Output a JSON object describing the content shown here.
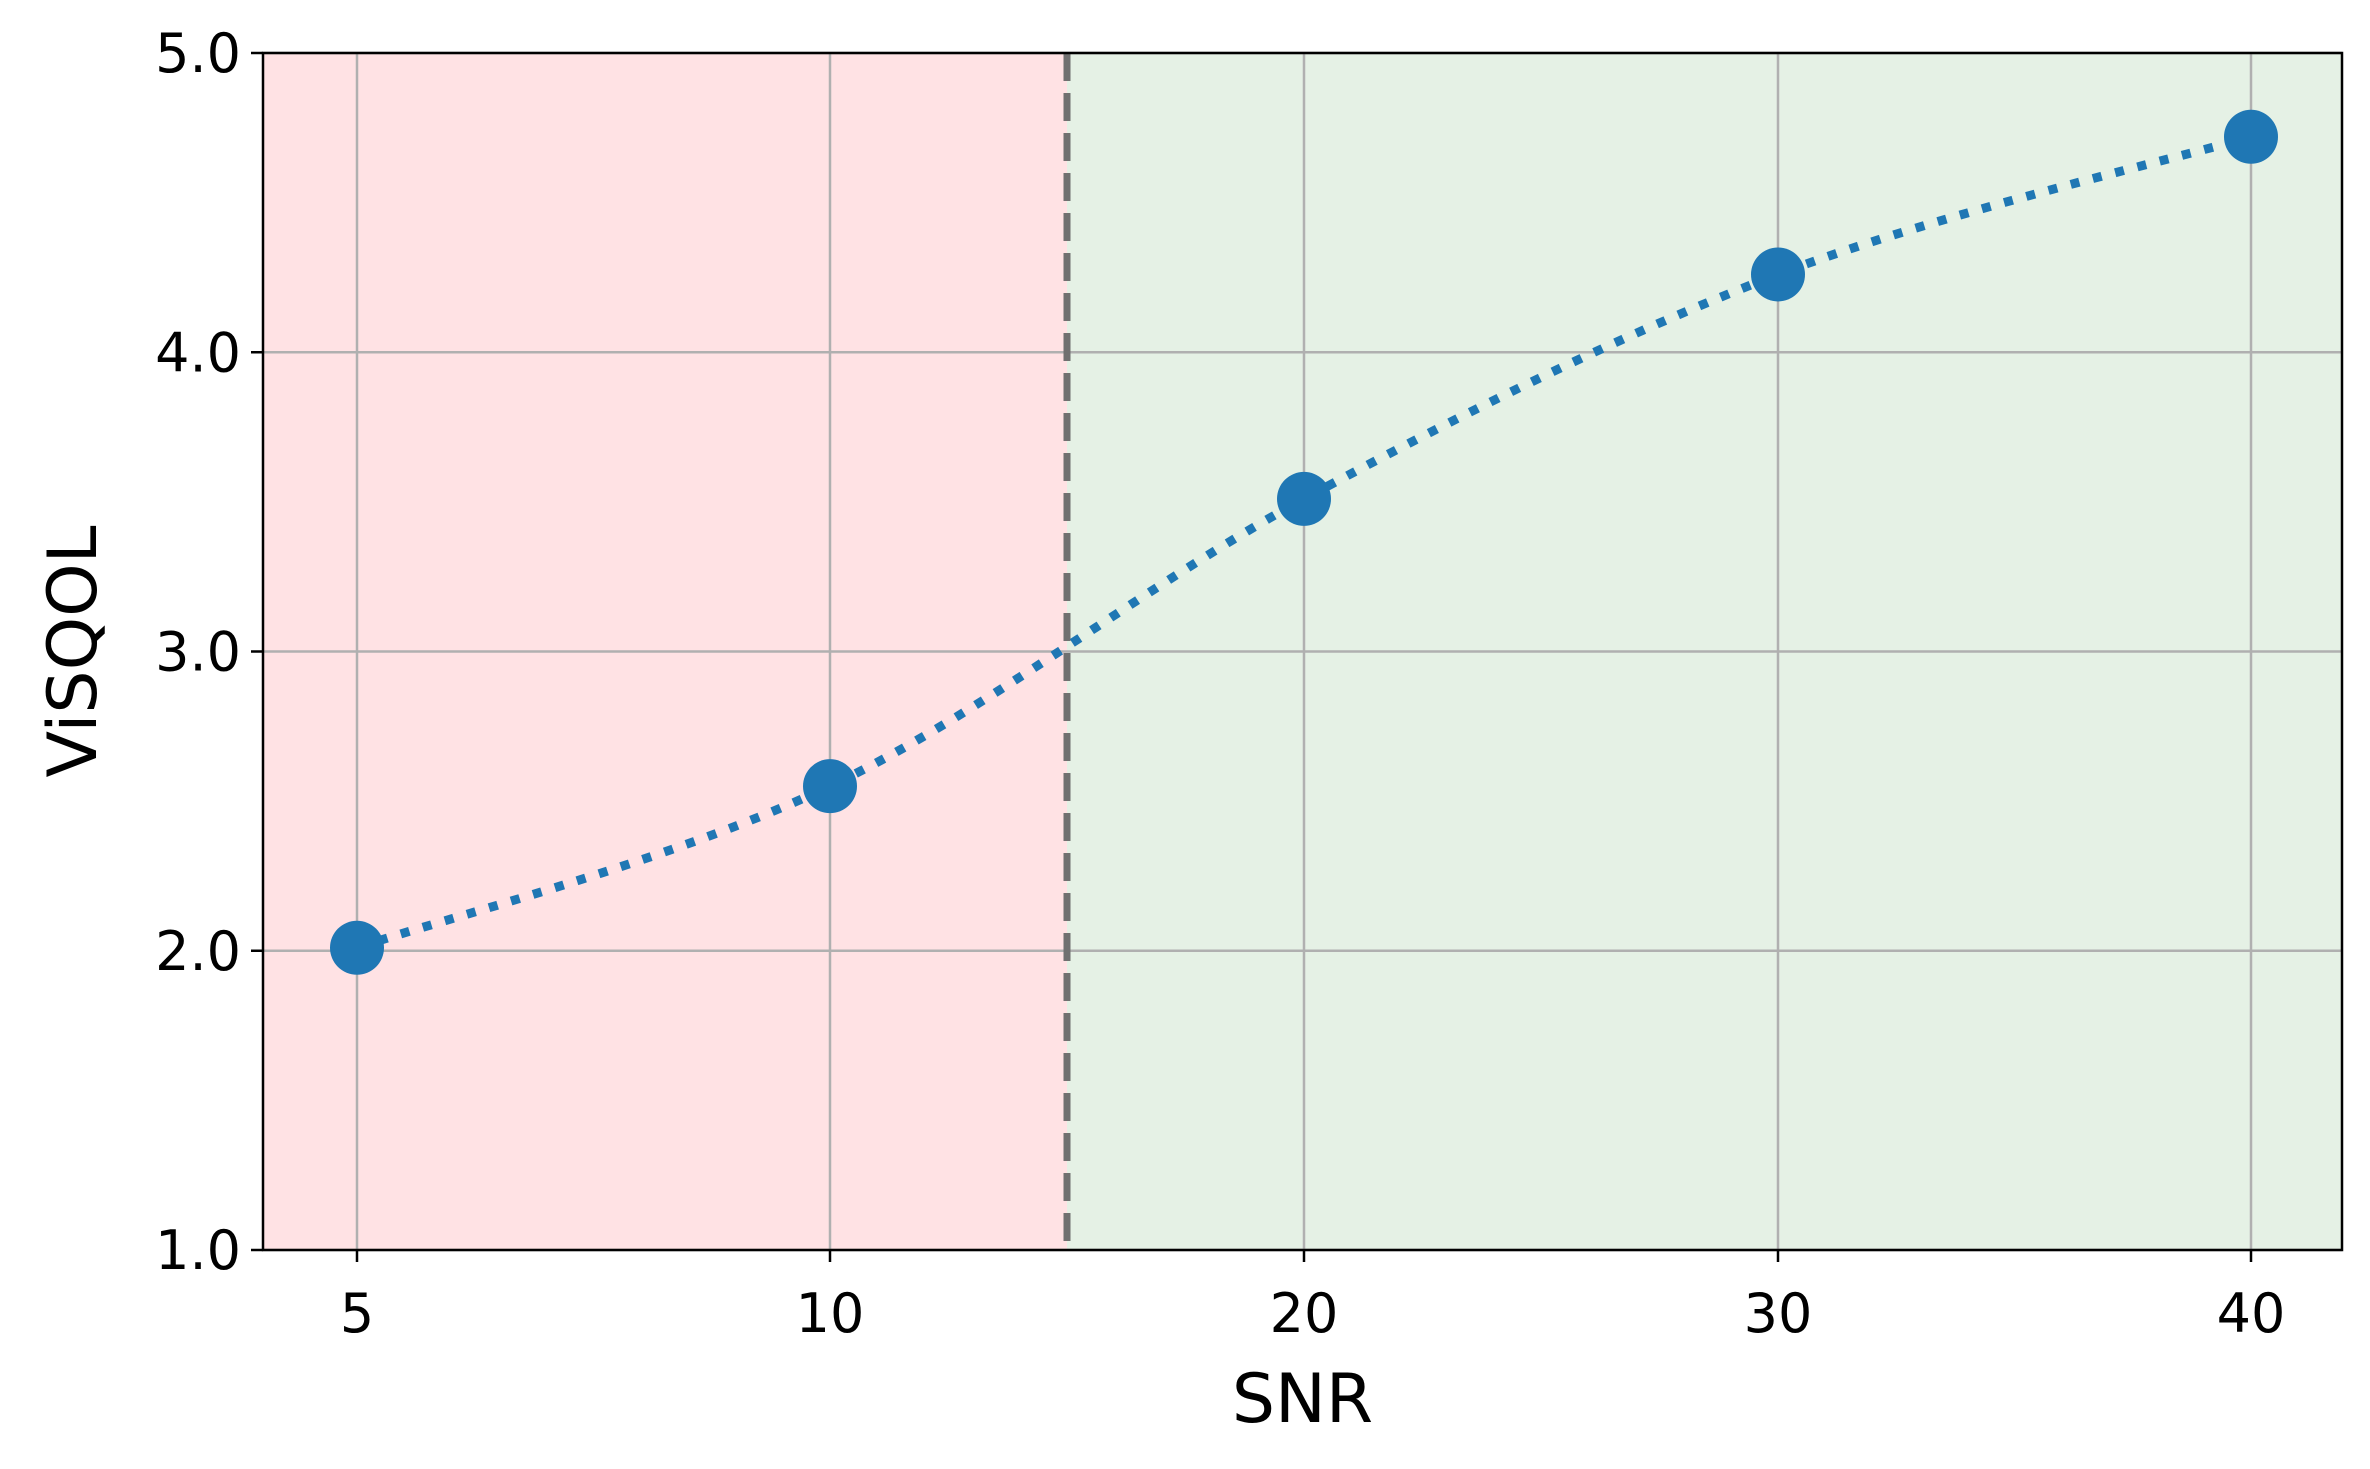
{
  "chart_data": {
    "type": "line",
    "title": "",
    "xlabel": "SNR",
    "ylabel": "ViSQOL",
    "x": [
      5,
      10,
      20,
      30,
      40
    ],
    "x_ticks": [
      5,
      10,
      20,
      30,
      40
    ],
    "x_tick_labels": [
      "5",
      "10",
      "20",
      "30",
      "40"
    ],
    "x_scale": "categorical-position",
    "ylim": [
      1.0,
      5.0
    ],
    "y_ticks": [
      1.0,
      2.0,
      3.0,
      4.0,
      5.0
    ],
    "y_tick_labels": [
      "1.0",
      "2.0",
      "3.0",
      "4.0",
      "5.0"
    ],
    "grid": true,
    "series": [
      {
        "values": [
          2.01,
          2.55,
          3.51,
          4.26,
          4.72
        ],
        "color": "#1f77b4",
        "line_style": "dotted",
        "marker": "circle"
      }
    ],
    "threshold": {
      "x": 15,
      "style": "dashed",
      "color": "#707070"
    },
    "regions": [
      {
        "from": "left-edge",
        "to": 15,
        "color": "#ffe2e4"
      },
      {
        "from": 15,
        "to": "right-edge",
        "color": "#e5f1e5"
      }
    ]
  }
}
